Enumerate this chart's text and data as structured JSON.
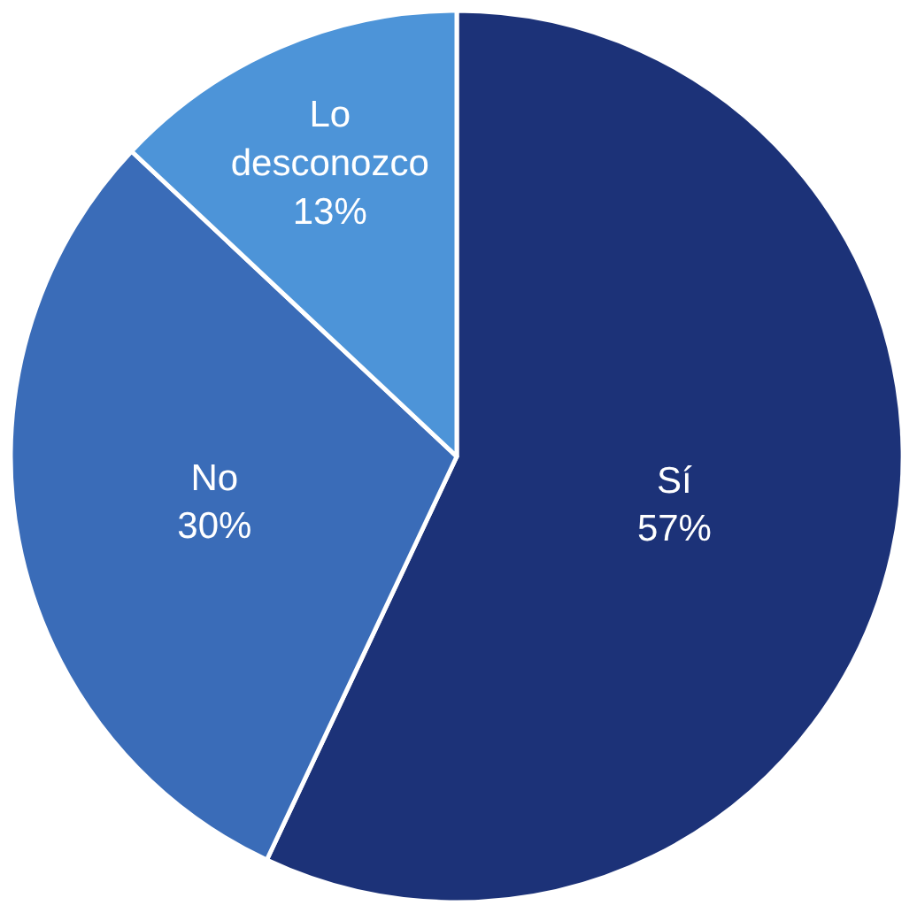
{
  "chart_data": {
    "type": "pie",
    "categories": [
      "Sí",
      "No",
      "Lo desconozco"
    ],
    "values": [
      57,
      30,
      13
    ],
    "colors": [
      "#1c3278",
      "#3a6cb8",
      "#4d94d8"
    ],
    "value_labels": [
      "57%",
      "30%",
      "13%"
    ],
    "legend": false
  }
}
